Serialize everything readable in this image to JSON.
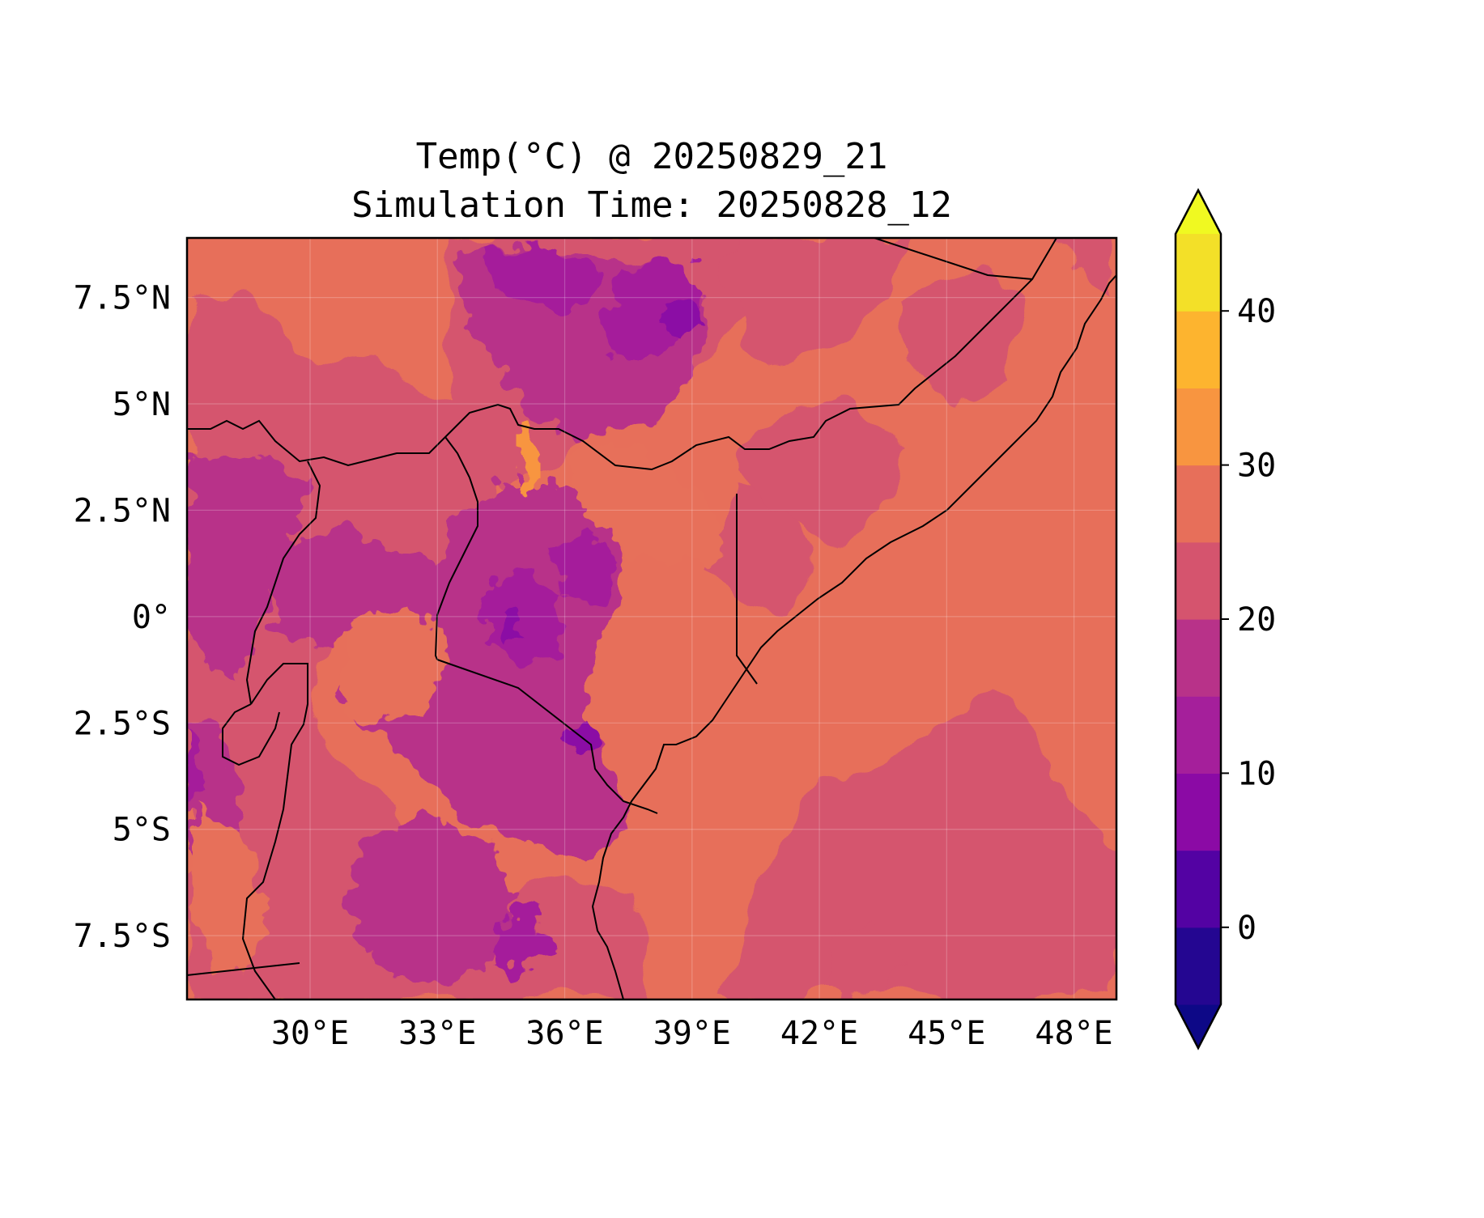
{
  "title": {
    "line1": "Temp(°C) @ 20250829_21",
    "line2": "Simulation Time: 20250828_12"
  },
  "map": {
    "lon_range": [
      27.1,
      49.0
    ],
    "lat_range": [
      -9.0,
      8.9
    ],
    "lon_ticks": [
      {
        "value": 30,
        "label": "30°E"
      },
      {
        "value": 33,
        "label": "33°E"
      },
      {
        "value": 36,
        "label": "36°E"
      },
      {
        "value": 39,
        "label": "39°E"
      },
      {
        "value": 42,
        "label": "42°E"
      },
      {
        "value": 45,
        "label": "45°E"
      },
      {
        "value": 48,
        "label": "48°E"
      }
    ],
    "lat_ticks": [
      {
        "value": 7.5,
        "label": "7.5°N"
      },
      {
        "value": 5,
        "label": "5°N"
      },
      {
        "value": 2.5,
        "label": "2.5°N"
      },
      {
        "value": 0,
        "label": "0°"
      },
      {
        "value": -2.5,
        "label": "2.5°S"
      },
      {
        "value": -5,
        "label": "5°S"
      },
      {
        "value": -7.5,
        "label": "7.5°S"
      }
    ],
    "grid": true,
    "colormap": "plasma"
  },
  "colorbar": {
    "levels": [
      -5,
      0,
      5,
      10,
      15,
      20,
      25,
      30,
      35,
      40,
      45
    ],
    "colors": [
      "#0d0887",
      "#240691",
      "#5302a3",
      "#8b0aa5",
      "#a51f9b",
      "#b83289",
      "#d5546e",
      "#e76f5a",
      "#f89540",
      "#fdb42f",
      "#f3e028",
      "#f0f921"
    ],
    "extend": "both",
    "tick_labels": [
      {
        "value": 0,
        "label": "0"
      },
      {
        "value": 10,
        "label": "10"
      },
      {
        "value": 20,
        "label": "20"
      },
      {
        "value": 30,
        "label": "30"
      },
      {
        "value": 40,
        "label": "40"
      }
    ]
  }
}
